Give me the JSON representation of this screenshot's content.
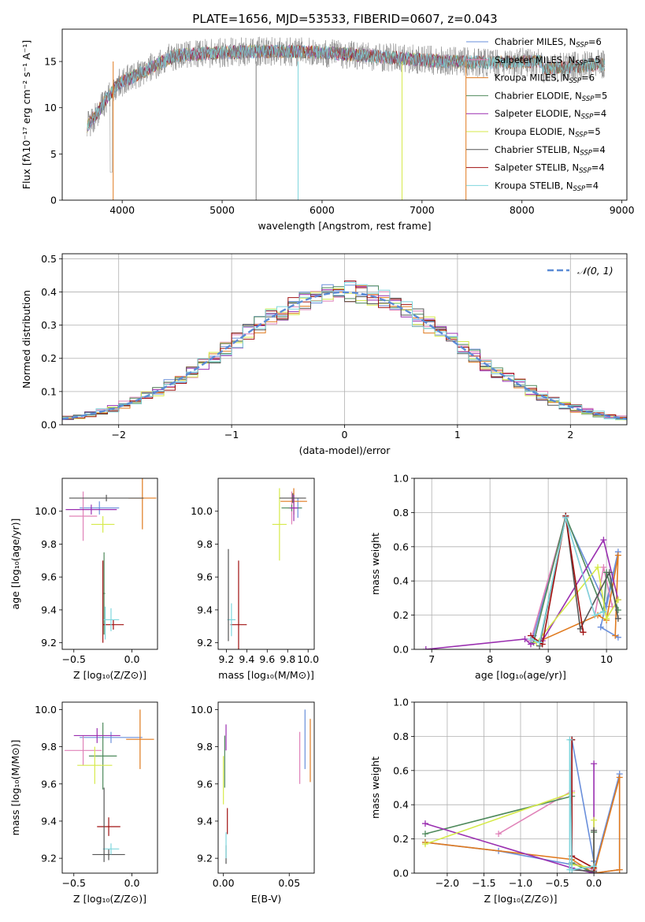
{
  "figure_title": "PLATE=1656, MJD=53533, FIBERID=0607, z=0.043",
  "colors": {
    "Chabrier MILES": "#6a8fdb",
    "Salpeter MILES": "#e082b8",
    "Kroupa MILES": "#e07a1f",
    "Chabrier ELODIE": "#4f8a5c",
    "Salpeter ELODIE": "#9a2fb0",
    "Kroupa ELODIE": "#d6ea4a",
    "Chabrier STELIB": "#555555",
    "Salpeter STELIB": "#a01010",
    "Kroupa STELIB": "#7fd6dd"
  },
  "legend_spectra": [
    {
      "name": "Chabrier MILES",
      "label": "Chabrier MILES, N",
      "n": "=6"
    },
    {
      "name": "Salpeter MILES",
      "label": "Salpeter MILES, N",
      "n": "=5"
    },
    {
      "name": "Kroupa MILES",
      "label": "Kroupa MILES, N",
      "n": "=6"
    },
    {
      "name": "Chabrier ELODIE",
      "label": "Chabrier ELODIE, N",
      "n": "=5"
    },
    {
      "name": "Salpeter ELODIE",
      "label": "Salpeter ELODIE, N",
      "n": "=4"
    },
    {
      "name": "Kroupa ELODIE",
      "label": "Kroupa ELODIE, N",
      "n": "=5"
    },
    {
      "name": "Chabrier STELIB",
      "label": "Chabrier STELIB, N",
      "n": "=4"
    },
    {
      "name": "Salpeter STELIB",
      "label": "Salpeter STELIB, N",
      "n": "=4"
    },
    {
      "name": "Kroupa STELIB",
      "label": "Kroupa STELIB, N",
      "n": "=4"
    }
  ],
  "legend_sub": "SSP",
  "chart_data": [
    {
      "id": "spectrum",
      "type": "line",
      "xlabel": "wavelength [Angstrom, rest frame]",
      "ylabel": "Flux [fλ10⁻¹⁷ erg cm⁻² s⁻¹ A⁻¹]",
      "xlim": [
        3400,
        9050
      ],
      "ylim": [
        0,
        18.5
      ],
      "xticks": [
        4000,
        5000,
        6000,
        7000,
        8000,
        9000
      ],
      "yticks": [
        0,
        5,
        10,
        15
      ],
      "data_range": [
        3650,
        8830
      ],
      "legend_loc": "upper right"
    },
    {
      "id": "residuals",
      "type": "histogram",
      "xlabel": "(data-model)/error",
      "ylabel": "Normed distribution",
      "xlim": [
        -2.5,
        2.5
      ],
      "ylim": [
        0,
        0.515
      ],
      "xticks": [
        -2,
        -1,
        0,
        1,
        2
      ],
      "xticklabels": [
        "−2",
        "−1",
        "0",
        "1",
        "2"
      ],
      "yticks": [
        0.0,
        0.1,
        0.2,
        0.3,
        0.4,
        0.5
      ],
      "yticklabels": [
        "0.0",
        "0.1",
        "0.2",
        "0.3",
        "0.4",
        "0.5"
      ],
      "bin_width": 0.1,
      "normal_label": "𝒩(0, 1)",
      "grid": true
    },
    {
      "id": "age_vs_Z",
      "type": "errorbar",
      "xlabel": "Z [log₁₀(Z/Z⊙)]",
      "ylabel": "age  [log₁₀(age/yr)]",
      "xlim": [
        -0.6,
        0.22
      ],
      "ylim": [
        9.16,
        10.2
      ],
      "xticks": [
        -0.5,
        0.0
      ],
      "xticklabels": [
        "−0.5",
        "0.0"
      ],
      "yticks": [
        9.2,
        9.4,
        9.6,
        9.8,
        10.0
      ],
      "yticklabels": [
        "9.2",
        "9.4",
        "9.6",
        "9.8",
        "10.0"
      ],
      "points": [
        {
          "model": "Chabrier MILES",
          "x": -0.28,
          "y": 10.02,
          "xerr": 0.17,
          "yerr": 0.04
        },
        {
          "model": "Salpeter MILES",
          "x": -0.42,
          "y": 9.97,
          "xerr": 0.12,
          "yerr": 0.15
        },
        {
          "model": "Kroupa MILES",
          "x": 0.09,
          "y": 10.08,
          "xerr": 0.12,
          "yerr": 0.19
        },
        {
          "model": "Chabrier ELODIE",
          "x": -0.24,
          "y": 9.5,
          "xerr": 0.01,
          "yerr": 0.25
        },
        {
          "model": "Salpeter ELODIE",
          "x": -0.35,
          "y": 10.01,
          "xerr": 0.22,
          "yerr": 0.03
        },
        {
          "model": "Kroupa ELODIE",
          "x": -0.25,
          "y": 9.92,
          "xerr": 0.1,
          "yerr": 0.05
        },
        {
          "model": "Chabrier STELIB",
          "x": -0.22,
          "y": 10.08,
          "xerr": 0.32,
          "yerr": 0.02
        },
        {
          "model": "Salpeter STELIB",
          "x": -0.16,
          "y": 9.31,
          "xerr": 0.09,
          "yerr": 0.03
        },
        {
          "model": "Kroupa STELIB",
          "x": -0.18,
          "y": 9.34,
          "xerr": 0.07,
          "yerr": 0.07
        },
        {
          "model": "Salpeter STELIB",
          "x": -0.25,
          "y": 9.45,
          "xerr": 0.0,
          "yerr": 0.25
        },
        {
          "model": "Kroupa STELIB",
          "x": -0.23,
          "y": 9.32,
          "xerr": 0.0,
          "yerr": 0.1
        }
      ]
    },
    {
      "id": "age_vs_mass",
      "type": "errorbar",
      "xlabel": "mass [log₁₀(M/M⊙)]",
      "ylabel": "",
      "xlim": [
        9.12,
        10.06
      ],
      "ylim": [
        9.16,
        10.2
      ],
      "xticks": [
        9.2,
        9.4,
        9.6,
        9.8,
        10.0
      ],
      "xticklabels": [
        "9.2",
        "9.4",
        "9.6",
        "9.8",
        "10.0"
      ],
      "yticks": [
        9.2,
        9.4,
        9.6,
        9.8,
        10.0
      ],
      "yticklabels": [
        "9.2",
        "9.4",
        "9.6",
        "9.8",
        "10.0"
      ],
      "points": [
        {
          "model": "Chabrier MILES",
          "x": 9.9,
          "y": 10.02,
          "xerr": 0.04,
          "yerr": 0.06
        },
        {
          "model": "Salpeter MILES",
          "x": 9.84,
          "y": 10.02,
          "xerr": 0.04,
          "yerr": 0.1
        },
        {
          "model": "Kroupa MILES",
          "x": 9.86,
          "y": 10.06,
          "xerr": 0.13,
          "yerr": 0.08
        },
        {
          "model": "Chabrier ELODIE",
          "x": 9.84,
          "y": 10.02,
          "xerr": 0.1,
          "yerr": 0.02
        },
        {
          "model": "Salpeter ELODIE",
          "x": 9.86,
          "y": 10.02,
          "xerr": 0.04,
          "yerr": 0.08
        },
        {
          "model": "Kroupa ELODIE",
          "x": 9.72,
          "y": 9.92,
          "xerr": 0.07,
          "yerr": 0.22
        },
        {
          "model": "Chabrier STELIB",
          "x": 9.85,
          "y": 10.08,
          "xerr": 0.13,
          "yerr": 0.03
        },
        {
          "model": "Salpeter STELIB",
          "x": 9.32,
          "y": 9.31,
          "xerr": 0.08,
          "yerr": 0.39
        },
        {
          "model": "Kroupa STELIB",
          "x": 9.25,
          "y": 9.34,
          "xerr": 0.04,
          "yerr": 0.1
        },
        {
          "model": "Chabrier STELIB",
          "x": 9.22,
          "y": 9.49,
          "xerr": 0.0,
          "yerr": 0.28
        }
      ]
    },
    {
      "id": "weight_vs_age",
      "type": "line",
      "xlabel": "age  [log₁₀(age/yr)]",
      "ylabel": "mass weight",
      "xlim": [
        6.7,
        10.35
      ],
      "ylim": [
        0,
        1
      ],
      "xticks": [
        7,
        8,
        9,
        10
      ],
      "xticklabels": [
        "7",
        "8",
        "9",
        "10"
      ],
      "yticks": [
        0,
        0.2,
        0.4,
        0.6,
        0.8,
        1.0
      ],
      "yticklabels": [
        "0.0",
        "0.2",
        "0.4",
        "0.6",
        "0.8",
        "1.0"
      ],
      "grid": true,
      "series": [
        {
          "model": "Chabrier MILES",
          "x": [
            8.7,
            8.75,
            9.3,
            10.0,
            10.2,
            9.9,
            10.2
          ],
          "y": [
            0.05,
            0.08,
            0.77,
            0.25,
            0.57,
            0.13,
            0.07
          ]
        },
        {
          "model": "Salpeter MILES",
          "x": [
            8.7,
            9.3,
            9.8,
            9.95,
            10.1
          ],
          "y": [
            0.05,
            0.77,
            0.2,
            0.48,
            0.25
          ]
        },
        {
          "model": "Kroupa MILES",
          "x": [
            8.8,
            9.85,
            10.0,
            10.2,
            10.15
          ],
          "y": [
            0.04,
            0.2,
            0.17,
            0.55,
            0.08
          ]
        },
        {
          "model": "Chabrier ELODIE",
          "x": [
            8.75,
            9.3,
            9.95,
            10.0,
            10.2
          ],
          "y": [
            0.04,
            0.78,
            0.22,
            0.45,
            0.23
          ]
        },
        {
          "model": "Salpeter ELODIE",
          "x": [
            6.9,
            8.6,
            8.7,
            8.9,
            9.95,
            10.2
          ],
          "y": [
            0.0,
            0.06,
            0.03,
            0.05,
            0.64,
            0.29
          ]
        },
        {
          "model": "Kroupa ELODIE",
          "x": [
            8.8,
            9.85,
            10.0,
            10.2
          ],
          "y": [
            0.04,
            0.48,
            0.18,
            0.29
          ]
        },
        {
          "model": "Chabrier STELIB",
          "x": [
            8.85,
            9.3,
            9.55,
            10.05,
            10.2
          ],
          "y": [
            0.02,
            0.78,
            0.12,
            0.45,
            0.18
          ]
        },
        {
          "model": "Salpeter STELIB",
          "x": [
            8.7,
            8.9,
            9.3,
            9.6
          ],
          "y": [
            0.08,
            0.03,
            0.78,
            0.1
          ]
        },
        {
          "model": "Kroupa STELIB",
          "x": [
            8.7,
            8.85,
            9.3,
            9.8,
            9.95
          ],
          "y": [
            0.06,
            0.04,
            0.77,
            0.2,
            0.22
          ]
        }
      ]
    },
    {
      "id": "mass_vs_Z",
      "type": "errorbar",
      "xlabel": "Z [log₁₀(Z/Z⊙)]",
      "ylabel": "mass [log₁₀(M/M⊙)]",
      "xlim": [
        -0.6,
        0.22
      ],
      "ylim": [
        9.12,
        10.04
      ],
      "xticks": [
        -0.5,
        0.0
      ],
      "xticklabels": [
        "−0.5",
        "0.0"
      ],
      "yticks": [
        9.2,
        9.4,
        9.6,
        9.8,
        10.0
      ],
      "yticklabels": [
        "9.2",
        "9.4",
        "9.6",
        "9.8",
        "10.0"
      ],
      "points": [
        {
          "model": "Chabrier MILES",
          "x": -0.18,
          "y": 9.85,
          "xerr": 0.27,
          "yerr": 0.03
        },
        {
          "model": "Salpeter MILES",
          "x": -0.42,
          "y": 9.78,
          "xerr": 0.16,
          "yerr": 0.08
        },
        {
          "model": "Kroupa MILES",
          "x": 0.07,
          "y": 9.84,
          "xerr": 0.12,
          "yerr": 0.16
        },
        {
          "model": "Chabrier ELODIE",
          "x": -0.25,
          "y": 9.75,
          "xerr": 0.12,
          "yerr": 0.18
        },
        {
          "model": "Salpeter ELODIE",
          "x": -0.3,
          "y": 9.86,
          "xerr": 0.2,
          "yerr": 0.04
        },
        {
          "model": "Kroupa ELODIE",
          "x": -0.32,
          "y": 9.7,
          "xerr": 0.15,
          "yerr": 0.1
        },
        {
          "model": "Chabrier STELIB",
          "x": -0.2,
          "y": 9.22,
          "xerr": 0.14,
          "yerr": 0.03
        },
        {
          "model": "Salpeter STELIB",
          "x": -0.2,
          "y": 9.37,
          "xerr": 0.1,
          "yerr": 0.05
        },
        {
          "model": "Kroupa STELIB",
          "x": -0.18,
          "y": 9.25,
          "xerr": 0.07,
          "yerr": 0.03
        },
        {
          "model": "Chabrier STELIB",
          "x": -0.24,
          "y": 9.38,
          "xerr": 0.0,
          "yerr": 0.2
        }
      ]
    },
    {
      "id": "mass_vs_ebv",
      "type": "errorbar",
      "xlabel": "E(B-V)",
      "ylabel": "",
      "xlim": [
        -0.004,
        0.069
      ],
      "ylim": [
        9.12,
        10.04
      ],
      "xticks": [
        0.0,
        0.05
      ],
      "xticklabels": [
        "0.00",
        "0.05"
      ],
      "yticks": [
        9.2,
        9.4,
        9.6,
        9.8,
        10.0
      ],
      "yticklabels": [
        "9.2",
        "9.4",
        "9.6",
        "9.8",
        "10.0"
      ],
      "points": [
        {
          "model": "Chabrier MILES",
          "x": 0.062,
          "y": 9.84,
          "xerr": 0.0,
          "yerr": 0.16
        },
        {
          "model": "Salpeter MILES",
          "x": 0.058,
          "y": 9.74,
          "xerr": 0.0,
          "yerr": 0.14
        },
        {
          "model": "Kroupa MILES",
          "x": 0.066,
          "y": 9.78,
          "xerr": 0.0,
          "yerr": 0.17
        },
        {
          "model": "Chabrier ELODIE",
          "x": 0.001,
          "y": 9.72,
          "xerr": 0.0,
          "yerr": 0.14
        },
        {
          "model": "Salpeter ELODIE",
          "x": 0.002,
          "y": 9.85,
          "xerr": 0.0,
          "yerr": 0.07
        },
        {
          "model": "Kroupa ELODIE",
          "x": 0.0,
          "y": 9.62,
          "xerr": 0.0,
          "yerr": 0.13
        },
        {
          "model": "Chabrier STELIB",
          "x": 0.002,
          "y": 9.22,
          "xerr": 0.0,
          "yerr": 0.05
        },
        {
          "model": "Salpeter STELIB",
          "x": 0.003,
          "y": 9.4,
          "xerr": 0.0,
          "yerr": 0.07
        },
        {
          "model": "Kroupa STELIB",
          "x": 0.002,
          "y": 9.27,
          "xerr": 0.0,
          "yerr": 0.07
        }
      ]
    },
    {
      "id": "weight_vs_Z",
      "type": "line",
      "xlabel": "Z [log₁₀(Z/Z⊙)]",
      "ylabel": "mass weight",
      "xlim": [
        -2.45,
        0.45
      ],
      "ylim": [
        0,
        1
      ],
      "xticks": [
        -2.0,
        -1.5,
        -1.0,
        -0.5,
        0.0
      ],
      "xticklabels": [
        "−2.0",
        "−1.5",
        "−1.0",
        "−0.5",
        "0.0"
      ],
      "yticks": [
        0,
        0.2,
        0.4,
        0.6,
        0.8,
        1.0
      ],
      "yticklabels": [
        "0.0",
        "0.2",
        "0.4",
        "0.6",
        "0.8",
        "1.0"
      ],
      "grid": true,
      "series": [
        {
          "model": "Chabrier MILES",
          "x": [
            -2.3,
            -1.3,
            -0.3,
            -0.3,
            0.0,
            0.0,
            0.35,
            0.35,
            0.0
          ],
          "y": [
            0.18,
            0.13,
            0.05,
            0.78,
            0.07,
            0.0,
            0.02,
            0.58,
            0.02
          ]
        },
        {
          "model": "Salpeter MILES",
          "x": [
            -1.3,
            -0.3,
            -0.3,
            0.0,
            0.0
          ],
          "y": [
            0.23,
            0.48,
            0.06,
            0.02,
            0.24
          ]
        },
        {
          "model": "Kroupa MILES",
          "x": [
            -2.3,
            -0.3,
            0.0,
            0.35,
            0.35,
            0.0
          ],
          "y": [
            0.18,
            0.08,
            0.0,
            0.02,
            0.56,
            0.0
          ]
        },
        {
          "model": "Chabrier ELODIE",
          "x": [
            -2.3,
            -0.3,
            -0.3,
            0.0,
            0.0
          ],
          "y": [
            0.23,
            0.45,
            0.06,
            0.0,
            0.24
          ]
        },
        {
          "model": "Salpeter ELODIE",
          "x": [
            -2.3,
            -0.3,
            0.0,
            0.0
          ],
          "y": [
            0.29,
            0.03,
            0.0,
            0.64
          ]
        },
        {
          "model": "Kroupa ELODIE",
          "x": [
            -2.3,
            -0.3,
            -0.3,
            0.0,
            0.0
          ],
          "y": [
            0.17,
            0.47,
            0.05,
            0.03,
            0.31
          ]
        },
        {
          "model": "Chabrier STELIB",
          "x": [
            -0.3,
            -0.3,
            0.0,
            0.0
          ],
          "y": [
            0.78,
            0.02,
            0.01,
            0.25
          ]
        },
        {
          "model": "Salpeter STELIB",
          "x": [
            -0.3,
            -0.3,
            0.0
          ],
          "y": [
            0.78,
            0.1,
            0.03
          ]
        },
        {
          "model": "Kroupa STELIB",
          "x": [
            -0.33,
            -0.33,
            -0.3,
            0.0
          ],
          "y": [
            0.02,
            0.78,
            0.02,
            0.04
          ]
        }
      ]
    }
  ]
}
